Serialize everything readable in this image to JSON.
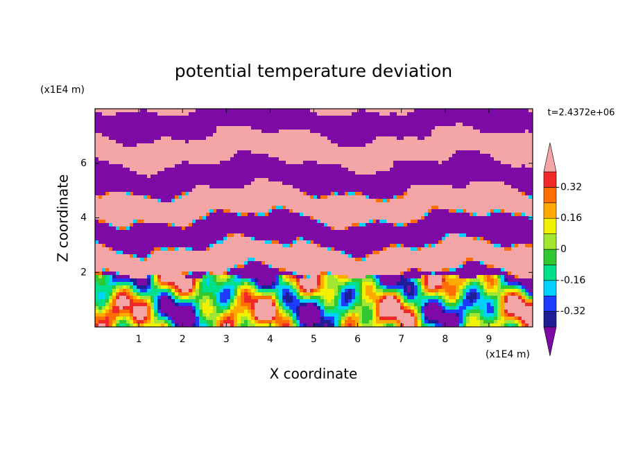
{
  "chart_data": {
    "type": "contour",
    "title": "potential temperature deviation",
    "x_label": "X coordinate",
    "y_label": "Z coordinate",
    "x_unit": "(x1E4 m)",
    "y_unit": "(x1E4 m)",
    "time_label": "t=2.4372e+06",
    "xlim": [
      0,
      10
    ],
    "xticks": [
      1,
      2,
      3,
      4,
      5,
      6,
      7,
      8,
      9
    ],
    "ylim": [
      0,
      8
    ],
    "yticks": [
      2,
      4,
      6
    ],
    "levels": [
      -0.4,
      -0.32,
      -0.24,
      -0.16,
      -0.08,
      0,
      0.08,
      0.16,
      0.24,
      0.32,
      0.4
    ],
    "colors": [
      "#7d0aa5",
      "#1e1e96",
      "#1e3cff",
      "#00d2ff",
      "#00e08a",
      "#32c832",
      "#a0e632",
      "#f0f000",
      "#ffaa00",
      "#ff6e00",
      "#f02828",
      "#f4a6a6"
    ],
    "colorbar_ticks": [
      -0.32,
      -0.16,
      0,
      0.16,
      0.32
    ]
  }
}
